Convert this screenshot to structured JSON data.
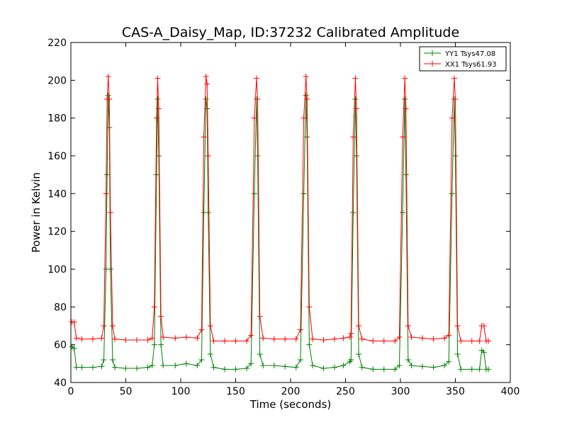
{
  "chart_data": {
    "type": "line",
    "title": "CAS-A_Daisy_Map, ID:37232 Calibrated Amplitude",
    "xlabel": "Time (seconds)",
    "ylabel": "Power in Kelvin",
    "xlim": [
      0,
      400
    ],
    "ylim": [
      40,
      220
    ],
    "x_ticks": [
      0,
      50,
      100,
      150,
      200,
      250,
      300,
      350,
      400
    ],
    "y_ticks": [
      40,
      60,
      80,
      100,
      120,
      140,
      160,
      180,
      200,
      220
    ],
    "x_tick_labels": [
      "0",
      "50",
      "100",
      "150",
      "200",
      "250",
      "300",
      "350",
      "400"
    ],
    "y_tick_labels": [
      "40",
      "60",
      "80",
      "100",
      "120",
      "140",
      "160",
      "180",
      "200",
      "220"
    ],
    "grid": false,
    "legend_position": "top-right",
    "marker": "+",
    "peaks_at": [
      34,
      79,
      124,
      169,
      214,
      259,
      304,
      349
    ],
    "series": [
      {
        "name": "YY1 Tsys47.08",
        "color": "#008000",
        "points": [
          [
            1,
            59
          ],
          [
            3,
            58
          ],
          [
            5,
            48
          ],
          [
            10,
            48
          ],
          [
            20,
            48
          ],
          [
            28,
            48.5
          ],
          [
            30,
            52
          ],
          [
            32,
            100
          ],
          [
            33,
            150
          ],
          [
            34,
            192
          ],
          [
            35,
            175
          ],
          [
            36,
            100
          ],
          [
            38,
            52
          ],
          [
            40,
            48
          ],
          [
            50,
            47.5
          ],
          [
            60,
            47.5
          ],
          [
            70,
            48
          ],
          [
            74,
            49
          ],
          [
            76,
            60
          ],
          [
            78,
            150
          ],
          [
            79,
            190
          ],
          [
            80,
            160
          ],
          [
            82,
            60
          ],
          [
            84,
            49
          ],
          [
            95,
            49
          ],
          [
            105,
            50
          ],
          [
            115,
            49
          ],
          [
            119,
            52
          ],
          [
            121,
            130
          ],
          [
            123,
            190
          ],
          [
            124,
            185
          ],
          [
            125,
            130
          ],
          [
            127,
            55
          ],
          [
            130,
            48
          ],
          [
            140,
            47
          ],
          [
            150,
            47
          ],
          [
            160,
            47.5
          ],
          [
            164,
            50
          ],
          [
            167,
            140
          ],
          [
            169,
            190
          ],
          [
            170,
            160
          ],
          [
            172,
            55
          ],
          [
            175,
            49
          ],
          [
            185,
            49
          ],
          [
            195,
            48.5
          ],
          [
            205,
            48
          ],
          [
            209,
            52
          ],
          [
            212,
            140
          ],
          [
            214,
            192
          ],
          [
            215,
            170
          ],
          [
            217,
            60
          ],
          [
            220,
            49
          ],
          [
            230,
            47.5
          ],
          [
            240,
            48
          ],
          [
            248,
            49
          ],
          [
            254,
            51
          ],
          [
            255,
            52
          ],
          [
            257,
            130
          ],
          [
            259,
            190
          ],
          [
            260,
            160
          ],
          [
            262,
            55
          ],
          [
            265,
            48
          ],
          [
            275,
            47
          ],
          [
            285,
            47
          ],
          [
            295,
            47
          ],
          [
            299,
            49
          ],
          [
            302,
            130
          ],
          [
            304,
            190
          ],
          [
            305,
            150
          ],
          [
            307,
            52
          ],
          [
            310,
            49
          ],
          [
            320,
            48.5
          ],
          [
            330,
            48
          ],
          [
            340,
            49
          ],
          [
            344,
            51
          ],
          [
            347,
            140
          ],
          [
            349,
            190
          ],
          [
            350,
            160
          ],
          [
            352,
            55
          ],
          [
            355,
            47
          ],
          [
            365,
            47
          ],
          [
            372,
            47
          ],
          [
            374,
            57
          ],
          [
            376,
            56
          ],
          [
            378,
            47
          ],
          [
            380,
            47
          ]
        ]
      },
      {
        "name": "XX1 Tsys61.93",
        "color": "#ff0000",
        "points": [
          [
            1,
            72
          ],
          [
            3,
            72
          ],
          [
            5,
            63.5
          ],
          [
            10,
            63
          ],
          [
            20,
            63
          ],
          [
            28,
            63.5
          ],
          [
            30,
            70
          ],
          [
            32,
            140
          ],
          [
            33,
            190
          ],
          [
            34,
            202
          ],
          [
            35,
            190
          ],
          [
            36,
            130
          ],
          [
            38,
            70
          ],
          [
            40,
            63
          ],
          [
            50,
            62.5
          ],
          [
            60,
            62.5
          ],
          [
            70,
            62.5
          ],
          [
            74,
            63.5
          ],
          [
            76,
            80
          ],
          [
            78,
            180
          ],
          [
            79,
            201
          ],
          [
            80,
            185
          ],
          [
            82,
            75
          ],
          [
            84,
            64
          ],
          [
            95,
            63.5
          ],
          [
            105,
            64
          ],
          [
            115,
            63.5
          ],
          [
            119,
            68
          ],
          [
            121,
            170
          ],
          [
            123,
            202
          ],
          [
            124,
            198
          ],
          [
            125,
            160
          ],
          [
            127,
            70
          ],
          [
            130,
            62
          ],
          [
            140,
            62
          ],
          [
            150,
            62
          ],
          [
            160,
            62
          ],
          [
            164,
            65
          ],
          [
            167,
            180
          ],
          [
            169,
            201
          ],
          [
            170,
            190
          ],
          [
            172,
            75
          ],
          [
            175,
            63.5
          ],
          [
            185,
            63
          ],
          [
            195,
            63
          ],
          [
            205,
            63
          ],
          [
            209,
            68
          ],
          [
            212,
            180
          ],
          [
            214,
            202
          ],
          [
            215,
            190
          ],
          [
            217,
            80
          ],
          [
            220,
            63
          ],
          [
            230,
            62.5
          ],
          [
            240,
            63
          ],
          [
            248,
            63.5
          ],
          [
            254,
            64
          ],
          [
            255,
            66
          ],
          [
            257,
            170
          ],
          [
            259,
            201
          ],
          [
            260,
            185
          ],
          [
            262,
            70
          ],
          [
            265,
            63
          ],
          [
            275,
            62
          ],
          [
            285,
            62
          ],
          [
            295,
            62
          ],
          [
            299,
            64
          ],
          [
            302,
            170
          ],
          [
            304,
            201
          ],
          [
            305,
            185
          ],
          [
            307,
            70
          ],
          [
            310,
            64
          ],
          [
            320,
            63.5
          ],
          [
            330,
            63
          ],
          [
            340,
            63.5
          ],
          [
            344,
            65
          ],
          [
            347,
            180
          ],
          [
            349,
            201
          ],
          [
            350,
            190
          ],
          [
            352,
            70
          ],
          [
            355,
            62
          ],
          [
            365,
            62
          ],
          [
            372,
            62
          ],
          [
            374,
            70
          ],
          [
            376,
            70
          ],
          [
            378,
            62
          ],
          [
            380,
            62
          ]
        ]
      }
    ]
  }
}
